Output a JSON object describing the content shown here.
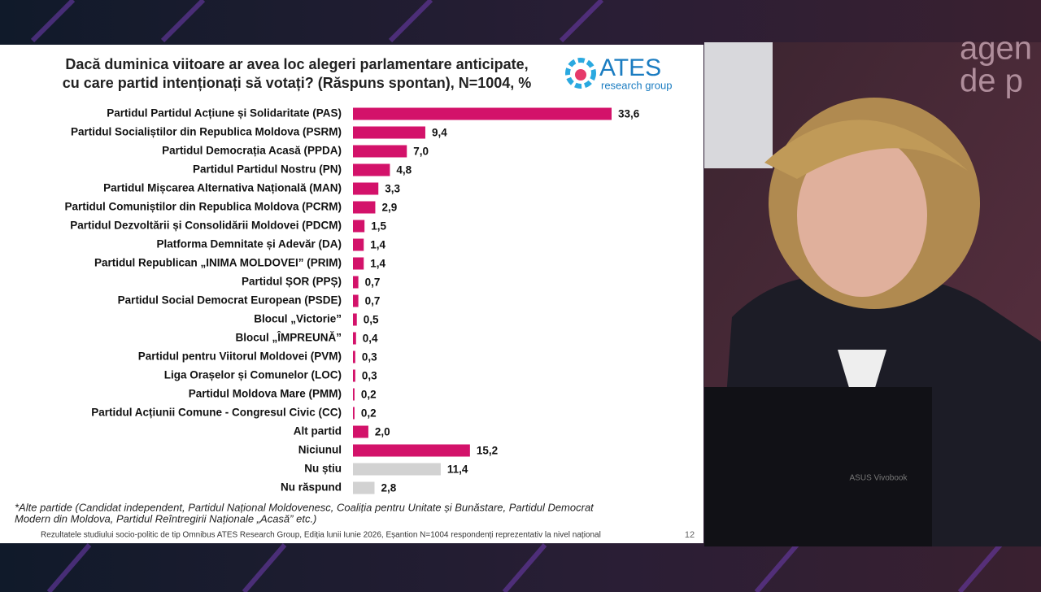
{
  "chart_data": {
    "type": "bar",
    "orientation": "horizontal",
    "title": [
      "Dacă duminica viitoare ar avea loc alegeri parlamentare anticipate,",
      "cu care partid intenționați să votați? (Răspuns spontan), N=1004, %"
    ],
    "logo": "ATES",
    "logo_subtitle": "research group",
    "categories": [
      "Partidul Partidul Acțiune și Solidaritate (PAS)",
      "Partidul Socialiștilor din Republica Moldova (PSRM)",
      "Partidul Democrația Acasă (PPDA)",
      "Partidul Partidul Nostru (PN)",
      "Partidul Mișcarea Alternativa Națională (MAN)",
      "Partidul Comuniștilor din Republica Moldova (PCRM)",
      "Partidul Dezvoltării și Consolidării Moldovei (PDCM)",
      "Platforma Demnitate și Adevăr (DA)",
      "Partidul Republican „INIMA MOLDOVEI” (PRIM)",
      "Partidul ȘOR (PPȘ)",
      "Partidul Social Democrat European (PSDE)",
      "Blocul „Victorie”",
      "Blocul „ÎMPREUNĂ”",
      "Partidul pentru Viitorul Moldovei (PVM)",
      "Liga Orașelor și Comunelor (LOC)",
      "Partidul Moldova Mare (PMM)",
      "Partidul Acțiunii Comune - Congresul Civic (CC)",
      "Alt partid",
      "Niciunul",
      "Nu știu",
      "Nu răspund"
    ],
    "values": [
      33.6,
      9.4,
      7.0,
      4.8,
      3.3,
      2.9,
      1.5,
      1.4,
      1.4,
      0.7,
      0.7,
      0.5,
      0.4,
      0.3,
      0.3,
      0.2,
      0.2,
      2.0,
      15.2,
      11.4,
      2.8
    ],
    "value_labels": [
      "33,6",
      "9,4",
      "7,0",
      "4,8",
      "3,3",
      "2,9",
      "1,5",
      "1,4",
      "1,4",
      "0,7",
      "0,7",
      "0,5",
      "0,4",
      "0,3",
      "0,3",
      "0,2",
      "0,2",
      "2,0",
      "15,2",
      "11,4",
      "2,8"
    ],
    "colors": [
      "#d3126a",
      "#d3126a",
      "#d3126a",
      "#d3126a",
      "#d3126a",
      "#d3126a",
      "#d3126a",
      "#d3126a",
      "#d3126a",
      "#d3126a",
      "#d3126a",
      "#d3126a",
      "#d3126a",
      "#d3126a",
      "#d3126a",
      "#d3126a",
      "#d3126a",
      "#d3126a",
      "#d3126a",
      "#d2d2d2",
      "#d2d2d2"
    ],
    "footnote": [
      "*Alte partide (Candidat independent, Partidul Național Moldovenesc,  Coaliția pentru Unitate și Bunăstare, Partidul Democrat",
      "Modern din Moldova, Partidul Reîntregirii Naționale „Acasă” etc.)"
    ],
    "source": "Rezultatele studiului socio-politic de tip Omnibus ATES Research Group, Ediția lunii Iunie 2026, Eșantion N=1004 respondenți reprezentativ la nivel național",
    "page_number": "12"
  },
  "studio": {
    "sign_lines": [
      "agen",
      "de p"
    ],
    "laptop_label": "ASUS Vivobook"
  }
}
